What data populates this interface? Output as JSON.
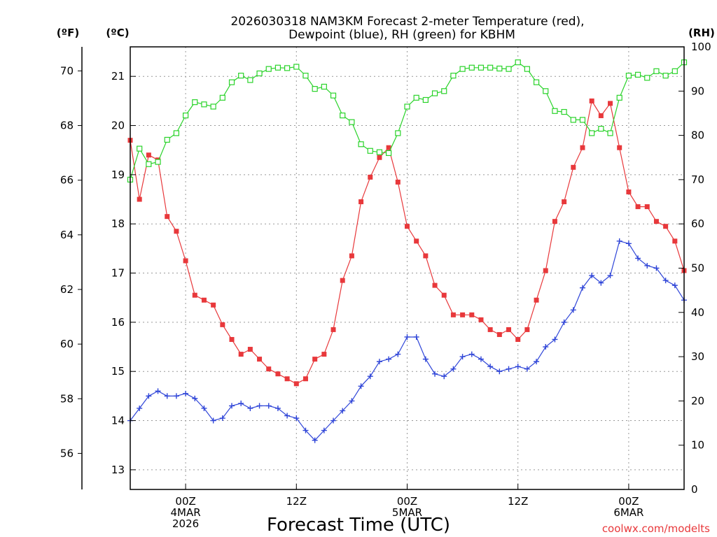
{
  "chart_data": {
    "type": "line",
    "title": [
      "2026030318 NAM3KM Forecast 2-meter Temperature (red),",
      "Dewpoint (blue), RH (green) for KBHM"
    ],
    "xlabel": "Forecast Time (UTC)",
    "credit": "coolwx.com/modelts",
    "units": {
      "fahrenheit": "(ºF)",
      "celsius": "(ºC)",
      "rh": "(RH)"
    },
    "x_range_hours": [
      -6,
      54
    ],
    "x_ticks": [
      {
        "hour": 0,
        "lines": [
          "00Z",
          "4MAR",
          "2026"
        ]
      },
      {
        "hour": 12,
        "lines": [
          "12Z"
        ]
      },
      {
        "hour": 24,
        "lines": [
          "00Z",
          "5MAR"
        ]
      },
      {
        "hour": 36,
        "lines": [
          "12Z"
        ]
      },
      {
        "hour": 48,
        "lines": [
          "00Z",
          "6MAR"
        ]
      }
    ],
    "celsius_axis": {
      "range": [
        12.6,
        21.6
      ],
      "ticks": [
        "13",
        "14",
        "15",
        "16",
        "17",
        "18",
        "19",
        "20",
        "21"
      ]
    },
    "fahrenheit_axis": {
      "ticks": [
        "56",
        "58",
        "60",
        "62",
        "64",
        "66",
        "68",
        "70"
      ]
    },
    "rh_axis": {
      "range": [
        0,
        100
      ],
      "ticks": [
        "0",
        "10",
        "20",
        "30",
        "40",
        "50",
        "60",
        "70",
        "80",
        "90",
        "100"
      ]
    },
    "series": [
      {
        "name": "Temperature",
        "color": "#e8383b",
        "marker": "filled-square",
        "axis": "celsius",
        "start_hour": -6,
        "step_hours": 1,
        "values": [
          19.7,
          18.5,
          19.4,
          19.3,
          18.15,
          17.85,
          17.25,
          16.55,
          16.45,
          16.35,
          15.95,
          15.65,
          15.35,
          15.45,
          15.25,
          15.05,
          14.95,
          14.85,
          14.75,
          14.85,
          15.25,
          15.35,
          15.85,
          16.85,
          17.35,
          18.45,
          18.95,
          19.35,
          19.55,
          18.85,
          17.95,
          17.65,
          17.35,
          16.75,
          16.55,
          16.15,
          16.15,
          16.15,
          16.05,
          15.85,
          15.75,
          15.85,
          15.65,
          15.85,
          16.45,
          17.05,
          18.05,
          18.45,
          19.15,
          19.55,
          20.5,
          20.2,
          20.45,
          19.55,
          18.65,
          18.35,
          18.35,
          18.05,
          17.95,
          17.65,
          17.05
        ]
      },
      {
        "name": "Dewpoint",
        "color": "#2f45d8",
        "marker": "plus",
        "axis": "celsius",
        "start_hour": -6,
        "step_hours": 1,
        "values": [
          14.0,
          14.25,
          14.5,
          14.6,
          14.5,
          14.5,
          14.55,
          14.45,
          14.25,
          14.0,
          14.05,
          14.3,
          14.35,
          14.25,
          14.3,
          14.3,
          14.25,
          14.1,
          14.05,
          13.8,
          13.6,
          13.8,
          14.0,
          14.2,
          14.4,
          14.7,
          14.9,
          15.2,
          15.25,
          15.35,
          15.7,
          15.7,
          15.25,
          14.95,
          14.9,
          15.05,
          15.3,
          15.35,
          15.25,
          15.1,
          15.0,
          15.05,
          15.1,
          15.05,
          15.2,
          15.5,
          15.65,
          16.0,
          16.25,
          16.7,
          16.95,
          16.8,
          16.95,
          17.65,
          17.6,
          17.3,
          17.15,
          17.1,
          16.85,
          16.75,
          16.45
        ]
      },
      {
        "name": "RH",
        "color": "#2ad32a",
        "marker": "open-square",
        "axis": "rh",
        "start_hour": -6,
        "step_hours": 1,
        "values": [
          70,
          77,
          73.5,
          74,
          79,
          80.5,
          84.5,
          87.5,
          87,
          86.5,
          88.5,
          92,
          93.5,
          92.5,
          94,
          95,
          95.3,
          95.2,
          95.5,
          93.5,
          90.5,
          91,
          89,
          84.5,
          83,
          78,
          76.5,
          76.2,
          76,
          80.5,
          86.5,
          88.5,
          88,
          89.5,
          90,
          93.5,
          95,
          95.3,
          95.3,
          95.3,
          95.1,
          95,
          96.5,
          95,
          92,
          90,
          85.5,
          85.3,
          83.5,
          83.5,
          80.5,
          81.5,
          80.5,
          88.5,
          93.5,
          93.7,
          93,
          94.5,
          93.5,
          94.5,
          96.5
        ]
      }
    ]
  }
}
